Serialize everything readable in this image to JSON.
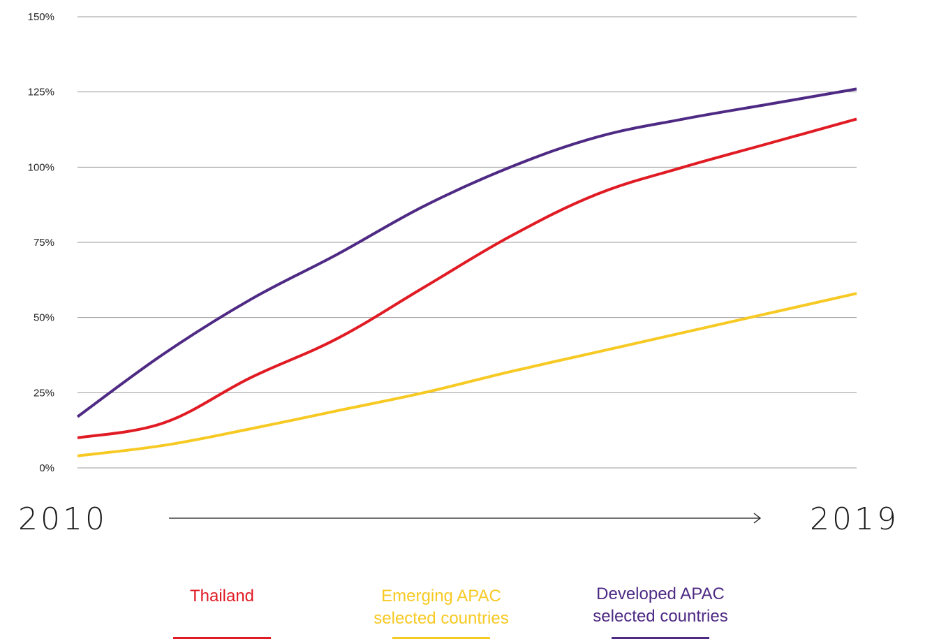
{
  "chart_data": {
    "type": "line",
    "y_ticks": [
      "0%",
      "25%",
      "50%",
      "75%",
      "100%",
      "125%",
      "150%"
    ],
    "y_tick_values": [
      0,
      25,
      50,
      75,
      100,
      125,
      150
    ],
    "ylim": [
      0,
      150
    ],
    "xlim": [
      2010,
      2019
    ],
    "x_start_label": "2010",
    "x_end_label": "2019",
    "grid": true,
    "legend_position": "bottom",
    "series": [
      {
        "name": "Thailand",
        "color": "#e01b24",
        "x": [
          2010,
          2011,
          2012,
          2013,
          2014,
          2015,
          2016,
          2017,
          2018,
          2019
        ],
        "y": [
          10,
          15,
          30,
          43,
          60,
          77,
          91,
          100,
          108,
          116
        ]
      },
      {
        "name": "Emerging APAC selected countries",
        "color": "#f7c923",
        "x": [
          2010,
          2011,
          2012,
          2013,
          2014,
          2015,
          2016,
          2017,
          2018,
          2019
        ],
        "y": [
          4,
          7.5,
          13,
          19,
          25,
          32,
          38.5,
          45,
          51.5,
          58
        ]
      },
      {
        "name": "Developed APAC selected countries",
        "color": "#4e2a84",
        "x": [
          2010,
          2011,
          2012,
          2013,
          2014,
          2015,
          2016,
          2017,
          2018,
          2019
        ],
        "y": [
          17,
          38,
          56,
          71,
          87,
          100,
          110,
          116,
          121,
          126
        ]
      }
    ]
  },
  "legend": {
    "items": [
      {
        "label": "Thailand",
        "color": "#e01b24"
      },
      {
        "label": "Emerging APAC selected countries",
        "color": "#f7c923"
      },
      {
        "label": "Developed APAC selected countries",
        "color": "#4e2a84"
      }
    ]
  }
}
